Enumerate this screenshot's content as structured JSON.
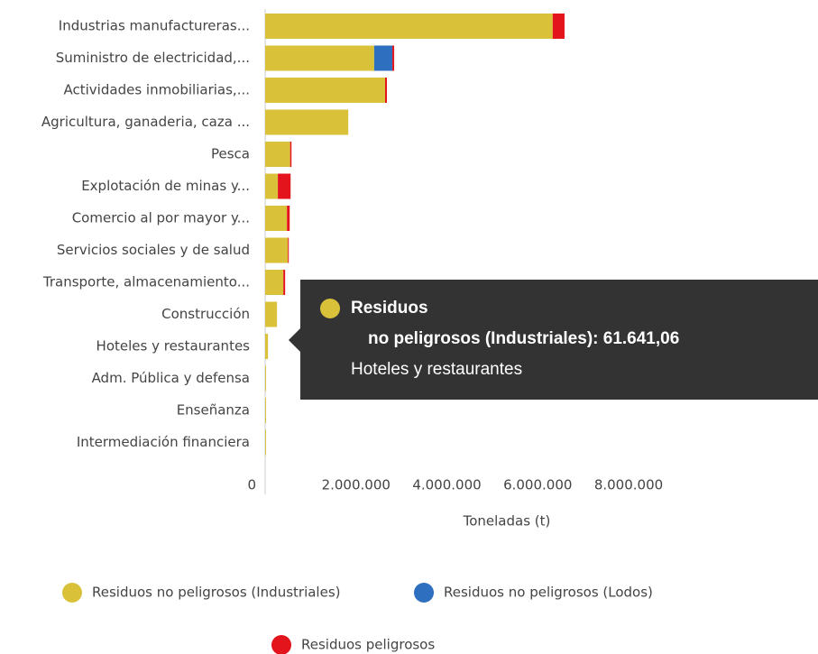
{
  "chart_data": {
    "type": "bar",
    "orientation": "horizontal",
    "stacked": true,
    "categories": [
      "Industrias manufactureras...",
      "Suministro de electricidad,...",
      "Actividades inmobiliarias,...",
      "Agricultura, ganaderia, caza ...",
      "Pesca",
      "Explotación de minas y...",
      "Comercio al por mayor y...",
      "Servicios sociales y de salud",
      "Transporte, almacenamiento...",
      "Construcción",
      "Hoteles y restaurantes",
      "Adm. Pública y defensa",
      "Enseñanza",
      "Intermediación financiera"
    ],
    "series": [
      {
        "name": "Residuos no peligrosos (Industriales)",
        "color": "#d9c23a",
        "values": [
          6330000,
          2400000,
          2640000,
          1830000,
          550000,
          280000,
          480000,
          500000,
          400000,
          260000,
          61641.06,
          20000,
          10000,
          5000
        ]
      },
      {
        "name": "Residuos no peligrosos (Lodos)",
        "color": "#2f6fbf",
        "values": [
          0,
          400000,
          0,
          0,
          0,
          0,
          0,
          0,
          0,
          0,
          0,
          0,
          0,
          0
        ]
      },
      {
        "name": "Residuos peligrosos",
        "color": "#e3141c",
        "values": [
          260000,
          40000,
          40000,
          0,
          30000,
          280000,
          60000,
          10000,
          40000,
          0,
          0,
          0,
          0,
          0
        ]
      }
    ],
    "xlim": [
      0,
      8000000
    ],
    "xticks": [
      0,
      {
        "value": 2000000,
        "label": "2.000.000"
      },
      {
        "value": 4000000,
        "label": "4.000.000"
      },
      {
        "value": 6000000,
        "label": "6.000.000"
      },
      {
        "value": 8000000,
        "label": "8.000.000"
      }
    ],
    "xlabel": "Toneladas (t)",
    "legend": "bottom",
    "tooltip": {
      "line1": "Residuos",
      "line2": "no peligrosos (Industriales): 61.641,06",
      "line3": "Hoteles y restaurantes"
    }
  }
}
